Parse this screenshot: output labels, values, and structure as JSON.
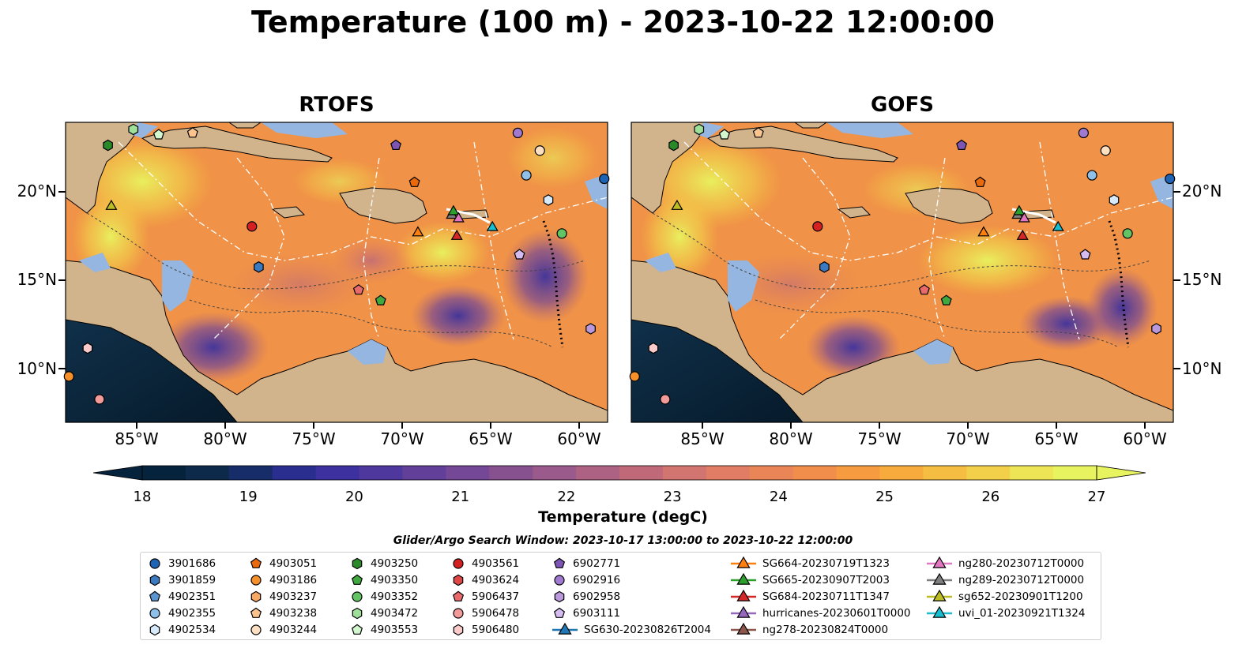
{
  "title": "Temperature (100 m) - 2023-10-22 12:00:00",
  "panels": [
    {
      "title": "RTOFS"
    },
    {
      "title": "GOFS"
    }
  ],
  "axes": {
    "lat_labels": [
      "20°N",
      "15°N",
      "10°N"
    ],
    "lon_labels": [
      "85°W",
      "80°W",
      "75°W",
      "70°W",
      "65°W",
      "60°W"
    ]
  },
  "colorbar": {
    "label": "Temperature (degC)",
    "ticks": [
      "18",
      "19",
      "20",
      "21",
      "22",
      "23",
      "24",
      "25",
      "26",
      "27"
    ],
    "vmin": 18,
    "vmax": 27,
    "extend": "both",
    "colors": [
      "#05233c",
      "#0d2a4a",
      "#172d6a",
      "#2a2f8f",
      "#3c319e",
      "#4e379d",
      "#623f98",
      "#744896",
      "#87508f",
      "#9a5a8c",
      "#ad6283",
      "#c06a79",
      "#d27470",
      "#e07d64",
      "#ea8558",
      "#f18e4c",
      "#f69b40",
      "#f7ab3c",
      "#f5bd42",
      "#f2d04a",
      "#eee556",
      "#e8f45f"
    ]
  },
  "map_colors": {
    "land": "#d2b48c",
    "shallow": "#95b6e0",
    "deep_pacific": "#0b2234",
    "contour": "#444444",
    "eez": "#ffffff"
  },
  "legend": {
    "title": "Glider/Argo Search Window: 2023-10-17 13:00:00 to 2023-10-22 12:00:00",
    "items": [
      {
        "label": "3901686",
        "marker": "circle",
        "color": "#1f64b4"
      },
      {
        "label": "3901859",
        "marker": "hexagon",
        "color": "#3a7ac0"
      },
      {
        "label": "4902351",
        "marker": "pentagon",
        "color": "#5b95d0"
      },
      {
        "label": "4902355",
        "marker": "circle",
        "color": "#8fc0ea"
      },
      {
        "label": "4902534",
        "marker": "hexagon",
        "color": "#d6eafb"
      },
      {
        "label": "4903051",
        "marker": "pentagon",
        "color": "#e86a0c"
      },
      {
        "label": "4903186",
        "marker": "circle",
        "color": "#f5902a"
      },
      {
        "label": "4903237",
        "marker": "hexagon",
        "color": "#f8a860"
      },
      {
        "label": "4903238",
        "marker": "pentagon",
        "color": "#fbc48e"
      },
      {
        "label": "4903244",
        "marker": "circle",
        "color": "#fde0c2"
      },
      {
        "label": "4903250",
        "marker": "hexagon",
        "color": "#2a8a2a"
      },
      {
        "label": "4903350",
        "marker": "pentagon",
        "color": "#3fa83f"
      },
      {
        "label": "4903352",
        "marker": "circle",
        "color": "#62c462"
      },
      {
        "label": "4903472",
        "marker": "hexagon",
        "color": "#9ee09a"
      },
      {
        "label": "4903553",
        "marker": "pentagon",
        "color": "#d2f6cd"
      },
      {
        "label": "4903561",
        "marker": "circle",
        "color": "#d42020"
      },
      {
        "label": "4903624",
        "marker": "hexagon",
        "color": "#e04646"
      },
      {
        "label": "5906437",
        "marker": "pentagon",
        "color": "#e86a6a"
      },
      {
        "label": "5906478",
        "marker": "circle",
        "color": "#f39a9a"
      },
      {
        "label": "5906480",
        "marker": "hexagon",
        "color": "#fbcaca"
      },
      {
        "label": "6902771",
        "marker": "pentagon",
        "color": "#7d55b5"
      },
      {
        "label": "6902916",
        "marker": "circle",
        "color": "#a07ad0"
      },
      {
        "label": "6902958",
        "marker": "hexagon",
        "color": "#b999dc"
      },
      {
        "label": "6903111",
        "marker": "pentagon",
        "color": "#d4bbf0"
      },
      {
        "label": "SG630-20230826T2004",
        "marker": "triangle-line",
        "color": "#1f77b4"
      },
      {
        "label": "SG664-20230719T1323",
        "marker": "triangle-line",
        "color": "#ff7f0e"
      },
      {
        "label": "SG665-20230907T2003",
        "marker": "triangle-line",
        "color": "#2ca02c"
      },
      {
        "label": "SG684-20230711T1347",
        "marker": "triangle-line",
        "color": "#d62728"
      },
      {
        "label": "hurricanes-20230601T0000",
        "marker": "triangle-line",
        "color": "#9467bd"
      },
      {
        "label": "ng278-20230824T0000",
        "marker": "triangle-line",
        "color": "#8c564b"
      },
      {
        "label": "ng280-20230712T0000",
        "marker": "triangle-line",
        "color": "#e377c2"
      },
      {
        "label": "ng289-20230712T0000",
        "marker": "triangle-line",
        "color": "#7f7f7f"
      },
      {
        "label": "sg652-20230901T1200",
        "marker": "triangle-line",
        "color": "#bcbd22"
      },
      {
        "label": "uvi_01-20230921T1324",
        "marker": "triangle-line",
        "color": "#17becf"
      }
    ]
  },
  "map_markers": [
    {
      "id": "4903250",
      "lon": -87.5,
      "lat": 22.7
    },
    {
      "id": "4903472",
      "lon": -86.0,
      "lat": 23.6
    },
    {
      "id": "4903553",
      "lon": -84.5,
      "lat": 23.3
    },
    {
      "id": "4903238",
      "lon": -82.5,
      "lat": 23.4
    },
    {
      "id": "6902771",
      "lon": -70.5,
      "lat": 22.7
    },
    {
      "id": "6902916",
      "lon": -63.3,
      "lat": 23.4
    },
    {
      "id": "4903244",
      "lon": -62.0,
      "lat": 22.4
    },
    {
      "id": "4902355",
      "lon": -62.8,
      "lat": 21.0
    },
    {
      "id": "3901686",
      "lon": -58.2,
      "lat": 20.8
    },
    {
      "id": "4903051",
      "lon": -69.4,
      "lat": 20.6
    },
    {
      "id": "4902534",
      "lon": -61.5,
      "lat": 19.6
    },
    {
      "id": "4903561",
      "lon": -79.0,
      "lat": 18.1
    },
    {
      "id": "4903352",
      "lon": -60.7,
      "lat": 17.7
    },
    {
      "id": "6903111",
      "lon": -63.2,
      "lat": 16.5
    },
    {
      "id": "3901859",
      "lon": -78.6,
      "lat": 15.8
    },
    {
      "id": "5906437",
      "lon": -72.7,
      "lat": 14.5
    },
    {
      "id": "4903350",
      "lon": -71.4,
      "lat": 13.9
    },
    {
      "id": "6902958",
      "lon": -59.0,
      "lat": 12.3
    },
    {
      "id": "5906480",
      "lon": -88.7,
      "lat": 11.2
    },
    {
      "id": "5906478",
      "lon": -88.0,
      "lat": 8.3
    },
    {
      "id": "4903186",
      "lon": -89.8,
      "lat": 9.6
    },
    {
      "id": "sg652-20230901T1200",
      "lon": -87.3,
      "lat": 19.3
    },
    {
      "id": "ng289-20230712T0000",
      "lon": -67.2,
      "lat": 18.8
    },
    {
      "id": "SG665-20230907T2003",
      "lon": -67.1,
      "lat": 19.0
    },
    {
      "id": "ng280-20230712T0000",
      "lon": -66.8,
      "lat": 18.6
    },
    {
      "id": "SG684-20230711T1347",
      "lon": -66.9,
      "lat": 17.6
    },
    {
      "id": "SG664-20230719T1323",
      "lon": -69.2,
      "lat": 17.8
    },
    {
      "id": "uvi_01-20230921T1324",
      "lon": -64.8,
      "lat": 18.1
    }
  ]
}
